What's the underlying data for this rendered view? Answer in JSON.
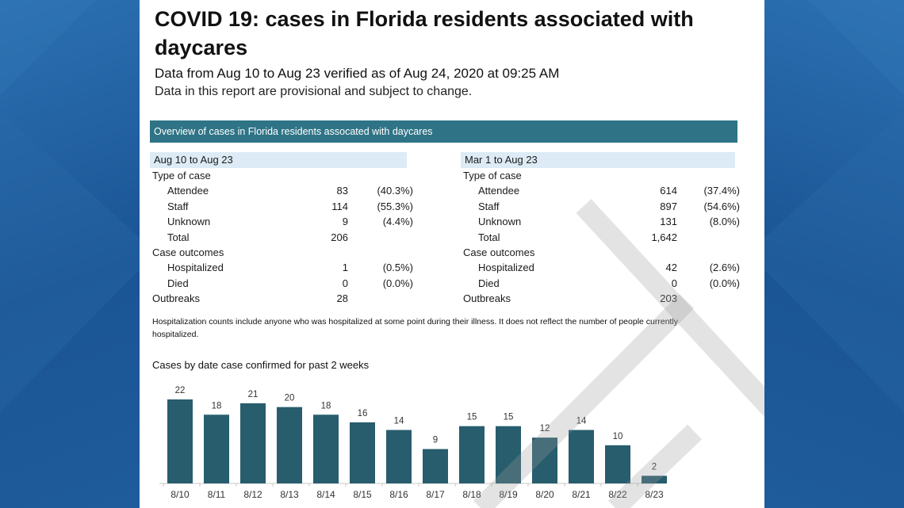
{
  "report": {
    "title": "COVID 19: cases in Florida residents associated with daycares",
    "date_range_line": "Data from Aug 10 to Aug 23 verified as of Aug 24, 2020 at 09:25 AM",
    "provisional_note": "Data in this report are provisional and subject to change.",
    "banner": "Overview of cases in Florida residents assocated with daycares",
    "hospitalization_note": "Hospitalization counts include anyone who was hospitalized at some point during their illness. It does not reflect the number of people currently hospitalized."
  },
  "panels": [
    {
      "period": "Aug 10 to Aug 23",
      "type_of_case_label": "Type of case",
      "rows": [
        {
          "label": "Attendee",
          "value": "83",
          "pct": "(40.3%)"
        },
        {
          "label": "Staff",
          "value": "114",
          "pct": "(55.3%)"
        },
        {
          "label": "Unknown",
          "value": "9",
          "pct": "(4.4%)"
        },
        {
          "label": "Total",
          "value": "206",
          "pct": ""
        }
      ],
      "case_outcomes_label": "Case outcomes",
      "outcomes": [
        {
          "label": "Hospitalized",
          "value": "1",
          "pct": "(0.5%)"
        },
        {
          "label": "Died",
          "value": "0",
          "pct": "(0.0%)"
        }
      ],
      "outbreaks_label": "Outbreaks",
      "outbreaks_value": "28"
    },
    {
      "period": "Mar 1 to Aug 23",
      "type_of_case_label": "Type of case",
      "rows": [
        {
          "label": "Attendee",
          "value": "614",
          "pct": "(37.4%)"
        },
        {
          "label": "Staff",
          "value": "897",
          "pct": "(54.6%)"
        },
        {
          "label": "Unknown",
          "value": "131",
          "pct": "(8.0%)"
        },
        {
          "label": "Total",
          "value": "1,642",
          "pct": ""
        }
      ],
      "case_outcomes_label": "Case outcomes",
      "outcomes": [
        {
          "label": "Hospitalized",
          "value": "42",
          "pct": "(2.6%)"
        },
        {
          "label": "Died",
          "value": "0",
          "pct": "(0.0%)"
        }
      ],
      "outbreaks_label": "Outbreaks",
      "outbreaks_value": "203"
    }
  ],
  "colors": {
    "background": "#1d5a98",
    "banner": "#2f7486",
    "panel_header": "#dcebf5",
    "bar": "#275d6d"
  },
  "chart_data": {
    "type": "bar",
    "title": "Cases by date case confirmed for past 2 weeks",
    "categories": [
      "8/10",
      "8/11",
      "8/12",
      "8/13",
      "8/14",
      "8/15",
      "8/16",
      "8/17",
      "8/18",
      "8/19",
      "8/20",
      "8/21",
      "8/22",
      "8/23"
    ],
    "values": [
      22,
      18,
      21,
      20,
      18,
      16,
      14,
      9,
      15,
      15,
      12,
      14,
      10,
      2
    ],
    "xlabel": "",
    "ylabel": "",
    "ylim": [
      0,
      22
    ],
    "grid": false,
    "data_labels": true
  }
}
